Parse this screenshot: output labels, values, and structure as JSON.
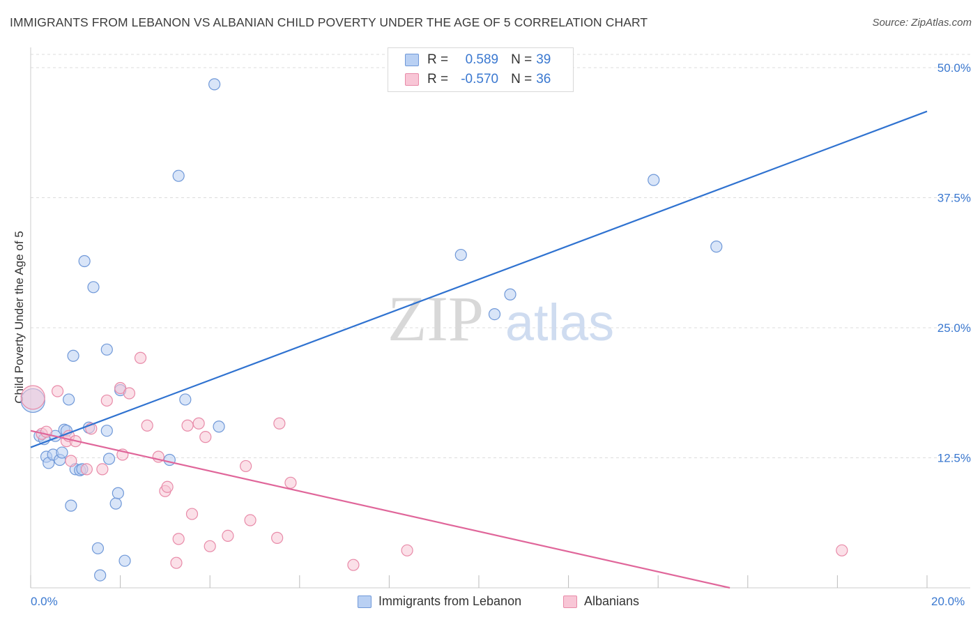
{
  "header": {
    "title": "IMMIGRANTS FROM LEBANON VS ALBANIAN CHILD POVERTY UNDER THE AGE OF 5 CORRELATION CHART",
    "source": "Source: ZipAtlas.com"
  },
  "watermark": {
    "zip": "ZIP",
    "atlas": "atlas"
  },
  "legend_top": {
    "rows": [
      {
        "r_label": "R =",
        "r_value": "0.589",
        "n_label": "N =",
        "n_value": "39",
        "color": "#6f98d8"
      },
      {
        "r_label": "R =",
        "r_value": "-0.570",
        "n_label": "N =",
        "n_value": "36",
        "color": "#e88aa8"
      }
    ]
  },
  "legend_bottom": {
    "items": [
      {
        "label": "Immigrants from Lebanon",
        "color": "#6f98d8"
      },
      {
        "label": "Albanians",
        "color": "#e88aa8"
      }
    ]
  },
  "axis_labels": {
    "x_min": "0.0%",
    "x_max": "20.0%"
  },
  "chart_data": {
    "type": "scatter",
    "title": "IMMIGRANTS FROM LEBANON VS ALBANIAN CHILD POVERTY UNDER THE AGE OF 5 CORRELATION CHART",
    "xlabel": "",
    "ylabel": "Child Poverty Under the Age of 5",
    "xlim": [
      0,
      20
    ],
    "ylim": [
      0,
      52
    ],
    "y_ticks": [
      12.5,
      25.0,
      37.5,
      50.0
    ],
    "y_tick_labels": [
      "12.5%",
      "25.0%",
      "37.5%",
      "50.0%"
    ],
    "x_tick_values": [
      0,
      2,
      4,
      6,
      8,
      10,
      12,
      14,
      16,
      18,
      20
    ],
    "grid": "horizontal dashed",
    "legend_position": "top-center",
    "series": [
      {
        "name": "Immigrants from Lebanon",
        "color": "#6f98d8",
        "fill": "#b9d0f3",
        "trend": {
          "x": [
            0,
            20
          ],
          "y": [
            13.5,
            45.8
          ]
        },
        "points": [
          {
            "x": 0.05,
            "y": 18.0,
            "big": true
          },
          {
            "x": 0.2,
            "y": 14.6
          },
          {
            "x": 0.3,
            "y": 14.3
          },
          {
            "x": 0.35,
            "y": 12.6
          },
          {
            "x": 0.4,
            "y": 12.0
          },
          {
            "x": 0.5,
            "y": 12.8
          },
          {
            "x": 0.55,
            "y": 14.6
          },
          {
            "x": 0.65,
            "y": 12.3
          },
          {
            "x": 0.7,
            "y": 13.0
          },
          {
            "x": 0.75,
            "y": 15.2
          },
          {
            "x": 0.8,
            "y": 15.1
          },
          {
            "x": 0.85,
            "y": 18.1
          },
          {
            "x": 0.9,
            "y": 7.9
          },
          {
            "x": 0.95,
            "y": 22.3
          },
          {
            "x": 1.0,
            "y": 11.4
          },
          {
            "x": 1.1,
            "y": 11.3
          },
          {
            "x": 1.15,
            "y": 11.4
          },
          {
            "x": 1.2,
            "y": 31.4
          },
          {
            "x": 1.3,
            "y": 15.4
          },
          {
            "x": 1.4,
            "y": 28.9
          },
          {
            "x": 1.5,
            "y": 3.8
          },
          {
            "x": 1.55,
            "y": 1.2
          },
          {
            "x": 1.7,
            "y": 22.9
          },
          {
            "x": 1.7,
            "y": 15.1
          },
          {
            "x": 1.75,
            "y": 12.4
          },
          {
            "x": 1.9,
            "y": 8.1
          },
          {
            "x": 1.95,
            "y": 9.1
          },
          {
            "x": 2.0,
            "y": 19.0
          },
          {
            "x": 2.1,
            "y": 2.6
          },
          {
            "x": 3.1,
            "y": 12.3
          },
          {
            "x": 3.3,
            "y": 39.6
          },
          {
            "x": 3.45,
            "y": 18.1
          },
          {
            "x": 4.1,
            "y": 48.4
          },
          {
            "x": 4.2,
            "y": 15.5
          },
          {
            "x": 9.6,
            "y": 32.0
          },
          {
            "x": 10.35,
            "y": 26.3
          },
          {
            "x": 10.7,
            "y": 28.2
          },
          {
            "x": 13.9,
            "y": 39.2
          },
          {
            "x": 15.3,
            "y": 32.8
          }
        ]
      },
      {
        "name": "Albanians",
        "color": "#e88aa8",
        "fill": "#f8c6d6",
        "trend": {
          "x": [
            0,
            15.6
          ],
          "y": [
            15.1,
            0
          ]
        },
        "points": [
          {
            "x": 0.05,
            "y": 18.3,
            "big": true
          },
          {
            "x": 0.25,
            "y": 14.8
          },
          {
            "x": 0.35,
            "y": 15.0
          },
          {
            "x": 0.8,
            "y": 14.1
          },
          {
            "x": 0.85,
            "y": 14.6
          },
          {
            "x": 0.9,
            "y": 12.2
          },
          {
            "x": 1.0,
            "y": 14.1
          },
          {
            "x": 1.25,
            "y": 11.4
          },
          {
            "x": 1.35,
            "y": 15.3
          },
          {
            "x": 1.6,
            "y": 11.4
          },
          {
            "x": 1.7,
            "y": 18.0
          },
          {
            "x": 2.0,
            "y": 19.2
          },
          {
            "x": 2.2,
            "y": 18.7
          },
          {
            "x": 2.05,
            "y": 12.8
          },
          {
            "x": 2.45,
            "y": 22.1
          },
          {
            "x": 2.6,
            "y": 15.6
          },
          {
            "x": 2.85,
            "y": 12.6
          },
          {
            "x": 3.0,
            "y": 9.3
          },
          {
            "x": 3.05,
            "y": 9.7
          },
          {
            "x": 3.3,
            "y": 4.7
          },
          {
            "x": 3.25,
            "y": 2.4
          },
          {
            "x": 3.5,
            "y": 15.6
          },
          {
            "x": 3.6,
            "y": 7.1
          },
          {
            "x": 3.75,
            "y": 15.8
          },
          {
            "x": 3.9,
            "y": 14.5
          },
          {
            "x": 4.0,
            "y": 4.0
          },
          {
            "x": 4.4,
            "y": 5.0
          },
          {
            "x": 4.8,
            "y": 11.7
          },
          {
            "x": 4.9,
            "y": 6.5
          },
          {
            "x": 5.5,
            "y": 4.8
          },
          {
            "x": 5.55,
            "y": 15.8
          },
          {
            "x": 5.8,
            "y": 10.1
          },
          {
            "x": 7.2,
            "y": 2.2
          },
          {
            "x": 8.4,
            "y": 3.6
          },
          {
            "x": 18.1,
            "y": 3.6
          },
          {
            "x": 0.6,
            "y": 18.9
          }
        ]
      }
    ]
  }
}
